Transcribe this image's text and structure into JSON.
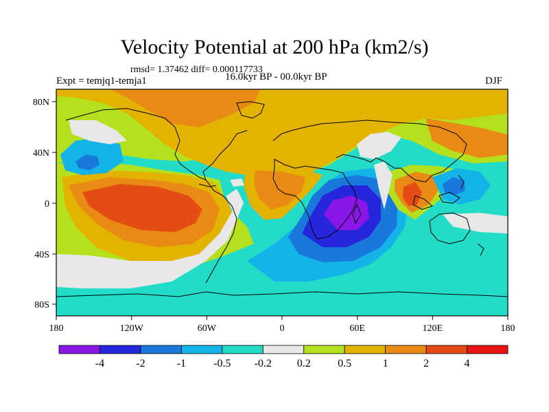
{
  "title": "Velocity Potential at 200 hPa (km2/s)",
  "stats": "rmsd= 1.37462 diff= 0.000117733",
  "experiment": "Expt = temjq1-temja1",
  "period": "16.0kyr BP - 00.0kyr BP",
  "season": "DJF",
  "lon_ticks": [
    "180",
    "120W",
    "60W",
    "0",
    "60E",
    "120E",
    "180"
  ],
  "lat_ticks": [
    "80N",
    "40N",
    "0",
    "40S",
    "80S"
  ],
  "colorbar": {
    "colors": [
      "#8a16e8",
      "#2626dc",
      "#1878dc",
      "#14b4e8",
      "#22dcc8",
      "#e8e8e8",
      "#b4e01e",
      "#e4b200",
      "#e88a14",
      "#e44c14",
      "#e81414"
    ],
    "labels": [
      "-4",
      "-2",
      "-1",
      "-0.5",
      "-0.2",
      "0.2",
      "0.5",
      "1",
      "2",
      "4"
    ]
  }
}
